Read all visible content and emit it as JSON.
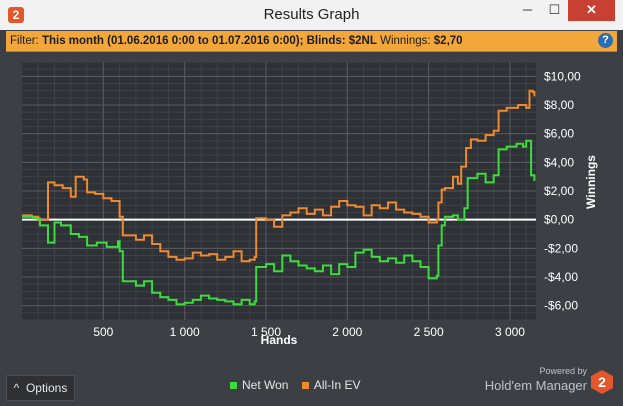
{
  "window": {
    "title": "Results Graph",
    "app_icon": "2",
    "minimize_label": "─",
    "maximize_label": "☐",
    "close_label": "✕"
  },
  "filter": {
    "prefix": "Filter: ",
    "range": "This month (01.06.2016 0:00 to 01.07.2016 0:00)",
    "sep1": "; ",
    "blinds": "Blinds: $2NL",
    "winnings_label": " Winnings: ",
    "winnings_value": "$2,70",
    "help_icon": "?"
  },
  "chart_data": {
    "type": "line",
    "xlabel": "Hands",
    "ylabel": "Winnings",
    "xlim": [
      0,
      3160
    ],
    "ylim": [
      -7,
      11
    ],
    "x_ticks": [
      500,
      1000,
      1500,
      2000,
      2500,
      3000
    ],
    "x_tick_labels": [
      "500",
      "1 000",
      "1 500",
      "2 000",
      "2 500",
      "3 000"
    ],
    "y_ticks": [
      -6,
      -4,
      -2,
      0,
      2,
      4,
      6,
      8,
      10
    ],
    "y_tick_labels": [
      "-$6,00",
      "-$4,00",
      "-$2,00",
      "$0,00",
      "$2,00",
      "$4,00",
      "$6,00",
      "$8,00",
      "$10,00"
    ],
    "grid": true,
    "zero_line": true,
    "series": [
      {
        "name": "Net Won",
        "color": "#3ddc3d",
        "points": [
          [
            0,
            0.2
          ],
          [
            70,
            0.1
          ],
          [
            110,
            -0.4
          ],
          [
            160,
            -1.6
          ],
          [
            200,
            -0.2
          ],
          [
            240,
            -0.4
          ],
          [
            300,
            -1.0
          ],
          [
            350,
            -1.2
          ],
          [
            400,
            -1.8
          ],
          [
            460,
            -1.6
          ],
          [
            520,
            -1.9
          ],
          [
            590,
            -1.5
          ],
          [
            600,
            -2.2
          ],
          [
            620,
            -4.3
          ],
          [
            700,
            -4.6
          ],
          [
            750,
            -4.3
          ],
          [
            800,
            -5.1
          ],
          [
            850,
            -5.4
          ],
          [
            900,
            -5.6
          ],
          [
            950,
            -5.9
          ],
          [
            1000,
            -5.8
          ],
          [
            1050,
            -5.6
          ],
          [
            1100,
            -5.3
          ],
          [
            1150,
            -5.5
          ],
          [
            1200,
            -5.6
          ],
          [
            1250,
            -5.7
          ],
          [
            1300,
            -5.9
          ],
          [
            1350,
            -5.6
          ],
          [
            1400,
            -5.9
          ],
          [
            1430,
            -5.7
          ],
          [
            1440,
            -3.3
          ],
          [
            1500,
            -3.1
          ],
          [
            1550,
            -3.6
          ],
          [
            1600,
            -2.5
          ],
          [
            1650,
            -2.9
          ],
          [
            1700,
            -3.2
          ],
          [
            1750,
            -3.4
          ],
          [
            1800,
            -3.6
          ],
          [
            1850,
            -3.2
          ],
          [
            1900,
            -3.8
          ],
          [
            1950,
            -3.1
          ],
          [
            2000,
            -3.3
          ],
          [
            2050,
            -2.3
          ],
          [
            2100,
            -2.1
          ],
          [
            2150,
            -2.6
          ],
          [
            2200,
            -2.9
          ],
          [
            2250,
            -2.7
          ],
          [
            2300,
            -3.0
          ],
          [
            2350,
            -2.5
          ],
          [
            2400,
            -2.9
          ],
          [
            2450,
            -3.3
          ],
          [
            2500,
            -4.1
          ],
          [
            2550,
            -3.9
          ],
          [
            2560,
            -1.8
          ],
          [
            2580,
            -0.4
          ],
          [
            2600,
            0.2
          ],
          [
            2650,
            0.3
          ],
          [
            2680,
            0.0
          ],
          [
            2720,
            0.8
          ],
          [
            2740,
            2.9
          ],
          [
            2800,
            3.2
          ],
          [
            2850,
            2.6
          ],
          [
            2900,
            3.1
          ],
          [
            2930,
            4.9
          ],
          [
            2980,
            5.1
          ],
          [
            3040,
            5.3
          ],
          [
            3080,
            5.1
          ],
          [
            3100,
            5.5
          ],
          [
            3130,
            3.1
          ],
          [
            3150,
            2.7
          ]
        ]
      },
      {
        "name": "All-In EV",
        "color": "#ef8a2e",
        "points": [
          [
            0,
            0.3
          ],
          [
            60,
            0.2
          ],
          [
            100,
            0.0
          ],
          [
            160,
            2.6
          ],
          [
            200,
            2.4
          ],
          [
            250,
            2.2
          ],
          [
            300,
            1.6
          ],
          [
            330,
            3.0
          ],
          [
            380,
            2.8
          ],
          [
            400,
            1.9
          ],
          [
            450,
            1.8
          ],
          [
            500,
            1.5
          ],
          [
            550,
            1.3
          ],
          [
            600,
            0.2
          ],
          [
            620,
            -1.1
          ],
          [
            700,
            -1.4
          ],
          [
            750,
            -1.1
          ],
          [
            800,
            -1.7
          ],
          [
            850,
            -2.2
          ],
          [
            900,
            -2.6
          ],
          [
            950,
            -2.8
          ],
          [
            1000,
            -2.7
          ],
          [
            1050,
            -2.3
          ],
          [
            1100,
            -2.5
          ],
          [
            1150,
            -2.4
          ],
          [
            1200,
            -2.8
          ],
          [
            1250,
            -2.6
          ],
          [
            1300,
            -2.2
          ],
          [
            1350,
            -2.9
          ],
          [
            1400,
            -2.8
          ],
          [
            1430,
            -2.6
          ],
          [
            1440,
            0.1
          ],
          [
            1500,
            0.0
          ],
          [
            1550,
            -0.5
          ],
          [
            1600,
            0.3
          ],
          [
            1650,
            0.5
          ],
          [
            1700,
            0.8
          ],
          [
            1750,
            0.4
          ],
          [
            1800,
            0.7
          ],
          [
            1850,
            0.3
          ],
          [
            1900,
            0.9
          ],
          [
            1950,
            1.3
          ],
          [
            2000,
            1.0
          ],
          [
            2050,
            0.9
          ],
          [
            2100,
            0.3
          ],
          [
            2150,
            1.0
          ],
          [
            2200,
            0.8
          ],
          [
            2250,
            1.2
          ],
          [
            2300,
            0.7
          ],
          [
            2350,
            0.5
          ],
          [
            2400,
            0.4
          ],
          [
            2450,
            0.2
          ],
          [
            2500,
            -0.2
          ],
          [
            2550,
            0.0
          ],
          [
            2560,
            1.2
          ],
          [
            2580,
            2.1
          ],
          [
            2600,
            2.2
          ],
          [
            2650,
            3.0
          ],
          [
            2680,
            2.5
          ],
          [
            2700,
            3.7
          ],
          [
            2730,
            5.0
          ],
          [
            2760,
            5.6
          ],
          [
            2800,
            5.5
          ],
          [
            2850,
            5.9
          ],
          [
            2900,
            6.2
          ],
          [
            2930,
            7.6
          ],
          [
            2980,
            7.8
          ],
          [
            3050,
            8.0
          ],
          [
            3100,
            7.8
          ],
          [
            3120,
            9.0
          ],
          [
            3140,
            8.9
          ],
          [
            3150,
            8.6
          ]
        ]
      }
    ]
  },
  "footer": {
    "options_label": "Options",
    "options_icon": "^",
    "legend_net_won": "Net Won",
    "legend_all_in_ev": "All-In EV",
    "powered_by": "Powered by",
    "brand_name": "Hold'em Manager",
    "brand_badge": "2"
  }
}
